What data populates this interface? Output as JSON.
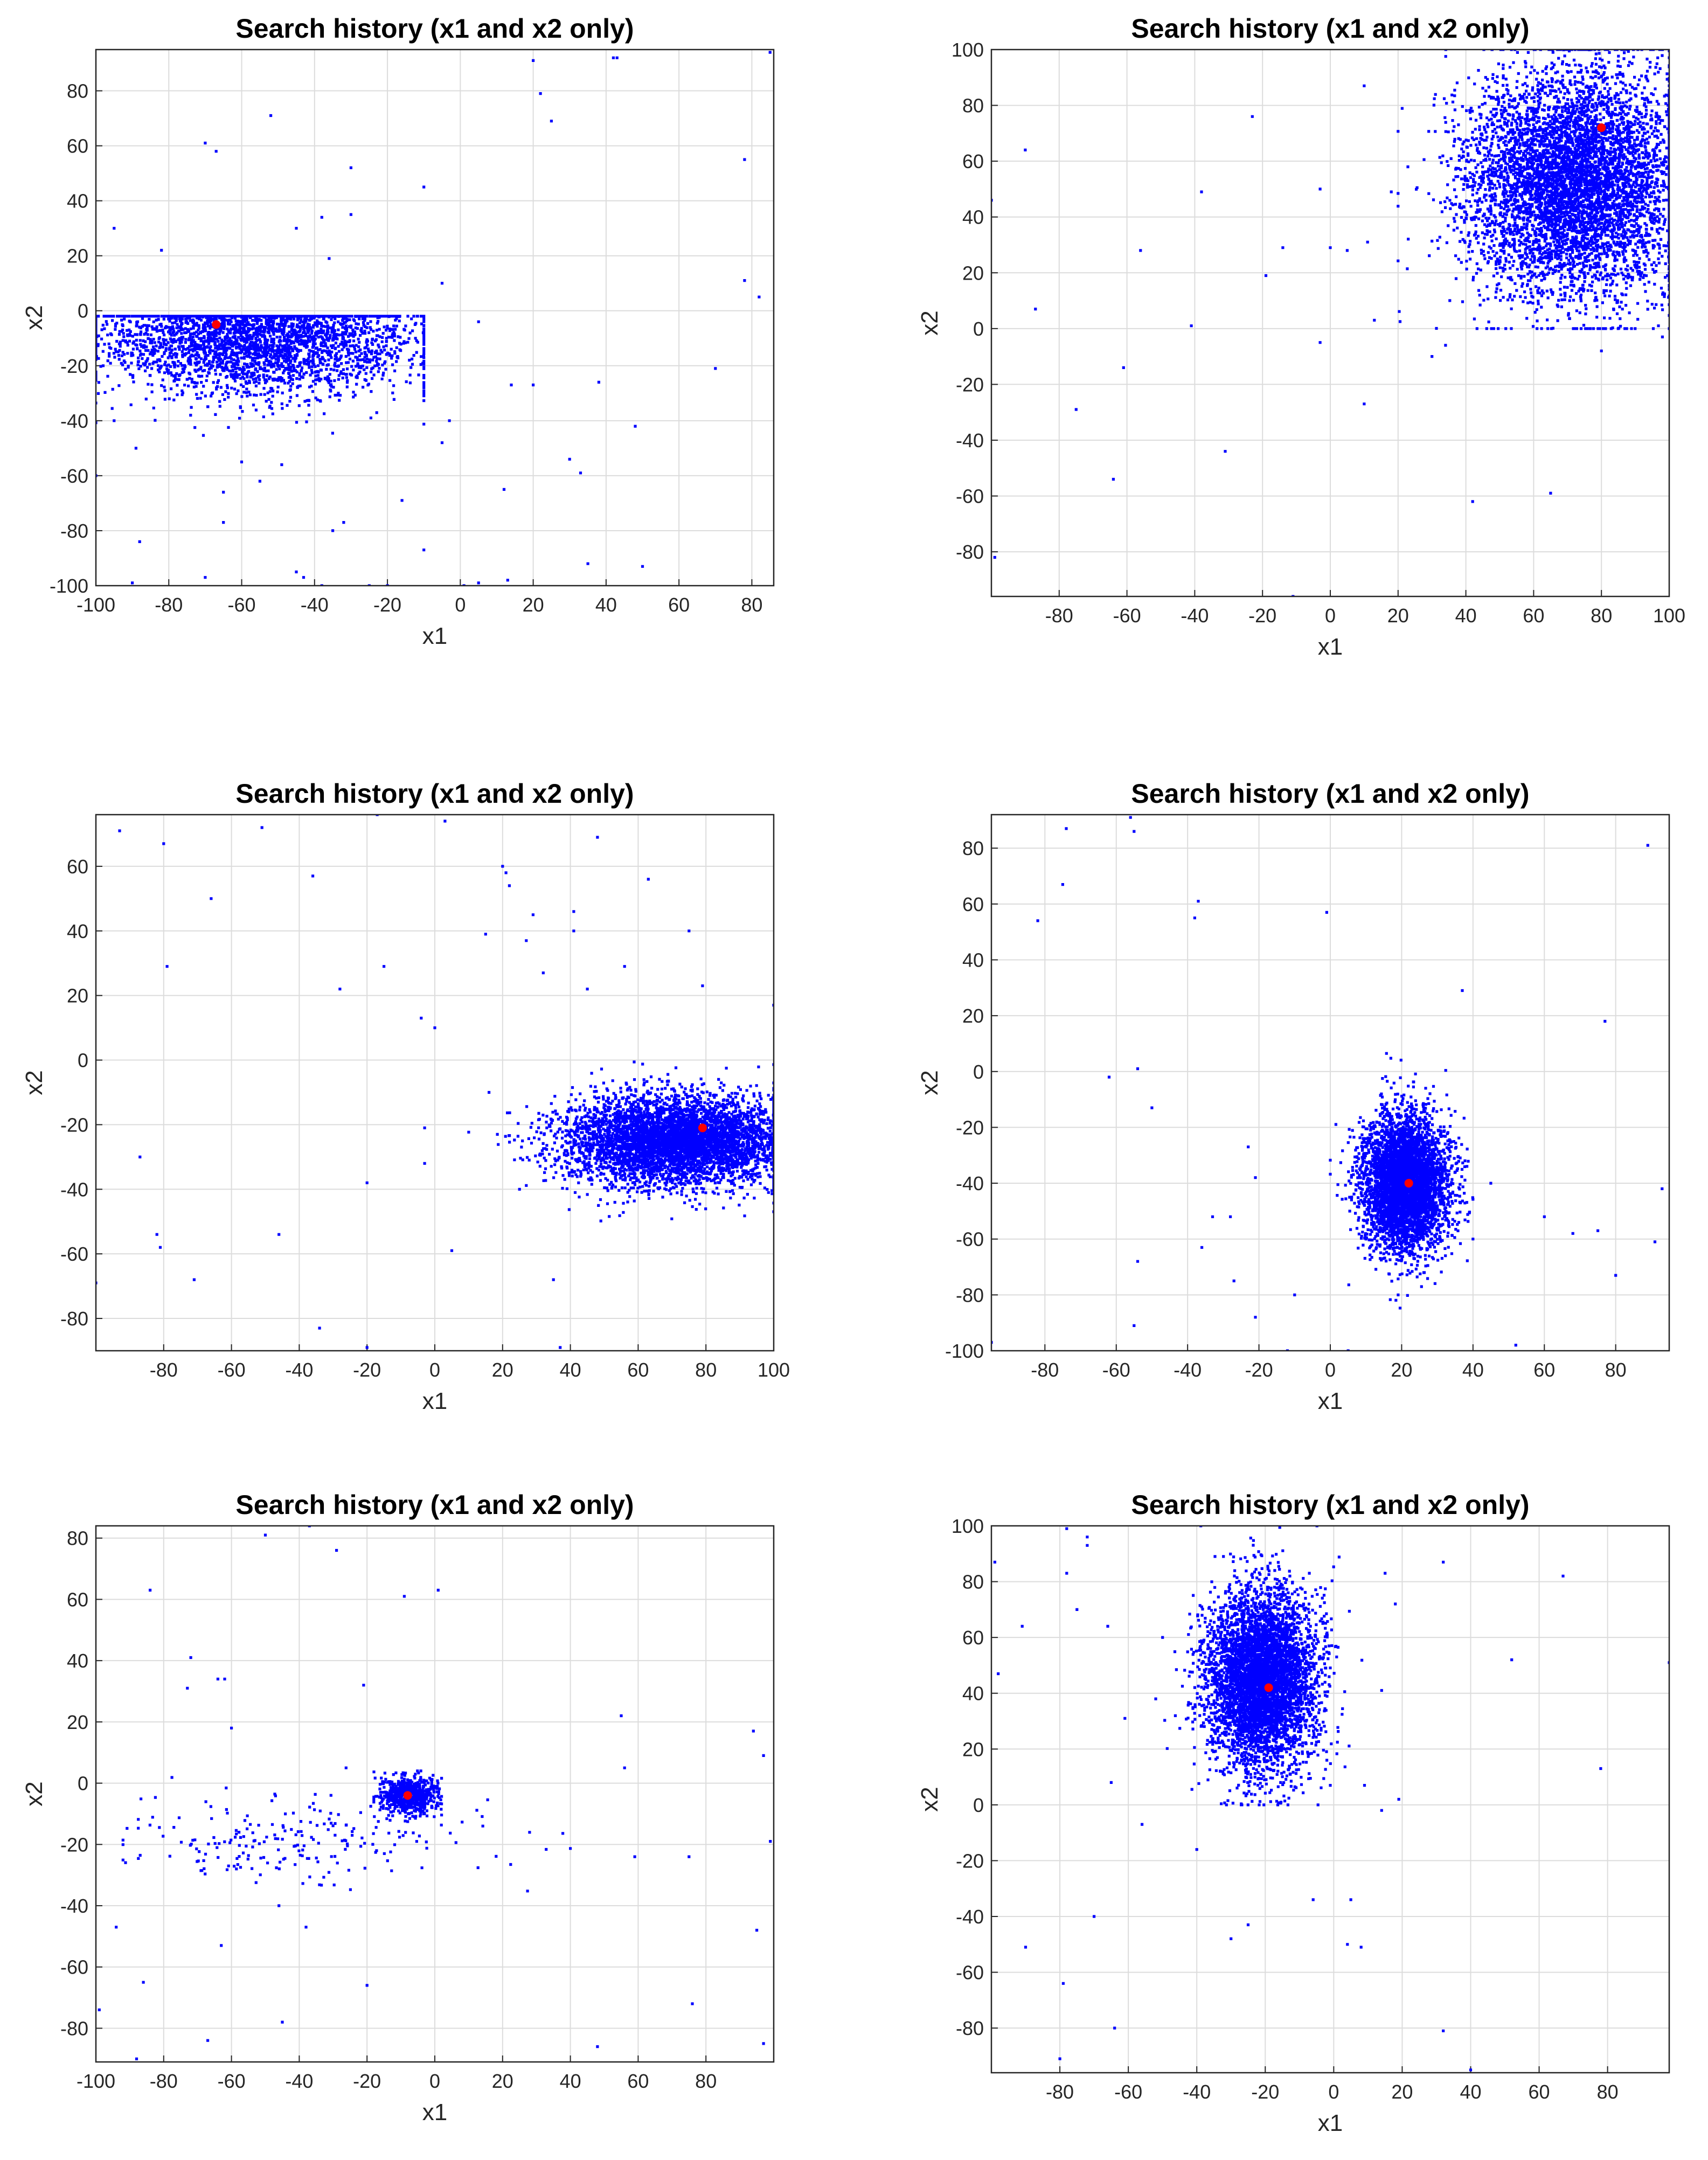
{
  "figure": {
    "colors": {
      "search_points": "#0000ff",
      "best_point": "#ff0000",
      "grid": "#dcdcdc",
      "axes": "#262626"
    }
  },
  "chart_data": [
    {
      "type": "scatter",
      "title": "Search history (x1 and x2 only)",
      "xlabel": "x1",
      "ylabel": "x2",
      "xlim": [
        -100,
        86
      ],
      "ylim": [
        -100,
        95
      ],
      "xticks": [
        -100,
        -80,
        -60,
        -40,
        -20,
        0,
        20,
        40,
        60,
        80
      ],
      "yticks": [
        -100,
        -80,
        -60,
        -40,
        -20,
        0,
        20,
        40,
        60,
        80
      ],
      "grid": true,
      "best_point": [
        -67,
        -5
      ],
      "cluster": {
        "center": [
          -55,
          -10
        ],
        "spread": [
          22,
          10
        ],
        "extent_x": [
          -100,
          -10
        ],
        "extent_y": [
          -50,
          -2
        ],
        "density_points": 3200
      },
      "outliers": [
        [
          -95,
          30
        ],
        [
          -82,
          22
        ],
        [
          -70,
          61
        ],
        [
          -67,
          58
        ],
        [
          -52,
          71
        ],
        [
          -45,
          30
        ],
        [
          -38,
          34
        ],
        [
          -36,
          19
        ],
        [
          -30,
          52
        ],
        [
          -30,
          35
        ],
        [
          -10,
          45
        ],
        [
          -5,
          10
        ],
        [
          5,
          -4
        ],
        [
          20,
          -27
        ],
        [
          14,
          -27
        ],
        [
          20,
          91
        ],
        [
          22,
          79
        ],
        [
          25,
          69
        ],
        [
          42,
          92
        ],
        [
          43,
          92
        ],
        [
          38,
          -26
        ],
        [
          48,
          -42
        ],
        [
          50,
          -93
        ],
        [
          33,
          -59
        ],
        [
          35,
          -92
        ],
        [
          30,
          -54
        ],
        [
          12,
          -65
        ],
        [
          13,
          -98
        ],
        [
          5,
          -99
        ],
        [
          -5,
          -48
        ],
        [
          -3,
          -40
        ],
        [
          -10,
          -87
        ],
        [
          -16,
          -69
        ],
        [
          -32,
          -77
        ],
        [
          -35,
          -80
        ],
        [
          -45,
          -95
        ],
        [
          -43,
          -97
        ],
        [
          -65,
          -66
        ],
        [
          -65,
          -77
        ],
        [
          -70,
          -97
        ],
        [
          -88,
          -84
        ],
        [
          -90,
          -99
        ],
        [
          70,
          -21
        ],
        [
          78,
          11
        ],
        [
          78,
          55
        ],
        [
          82,
          5
        ],
        [
          85,
          94
        ],
        [
          -89,
          -50
        ],
        [
          -95,
          -40
        ],
        [
          -74,
          -38
        ],
        [
          -60,
          -55
        ],
        [
          -55,
          -62
        ],
        [
          -49,
          -56
        ],
        [
          -38,
          -100
        ],
        [
          -25,
          -100
        ],
        [
          -20,
          -100
        ],
        [
          1,
          -100
        ],
        [
          -100,
          -60
        ],
        [
          -98,
          -20
        ]
      ]
    },
    {
      "type": "scatter",
      "title": "Search history (x1 and x2 only)",
      "xlabel": "x1",
      "ylabel": "x2",
      "xlim": [
        -100,
        100
      ],
      "ylim": [
        -96,
        100
      ],
      "xticks": [
        -80,
        -60,
        -40,
        -20,
        0,
        20,
        40,
        60,
        80,
        100
      ],
      "yticks": [
        -80,
        -60,
        -40,
        -20,
        0,
        20,
        40,
        60,
        80,
        100
      ],
      "grid": true,
      "best_point": [
        80,
        72
      ],
      "cluster": {
        "center": [
          72,
          52
        ],
        "spread": [
          16,
          20
        ],
        "extent_x": [
          20,
          100
        ],
        "extent_y": [
          0,
          100
        ],
        "density_points": 6000
      },
      "outliers": [
        [
          -90,
          64
        ],
        [
          -87,
          7
        ],
        [
          -75,
          -29
        ],
        [
          -61,
          -14
        ],
        [
          -64,
          -54
        ],
        [
          -56,
          28
        ],
        [
          -41,
          1
        ],
        [
          -38,
          49
        ],
        [
          -31,
          -44
        ],
        [
          -23,
          76
        ],
        [
          -19,
          19
        ],
        [
          -14,
          29
        ],
        [
          -11,
          -96
        ],
        [
          -3,
          50
        ],
        [
          -3,
          -5
        ],
        [
          0,
          29
        ],
        [
          10,
          87
        ],
        [
          10,
          -27
        ],
        [
          11,
          31
        ],
        [
          5,
          28
        ],
        [
          42,
          -62
        ],
        [
          65,
          -59
        ],
        [
          80,
          -8
        ],
        [
          98,
          -3
        ],
        [
          -99,
          -82
        ],
        [
          -100,
          46
        ],
        [
          13,
          3
        ],
        [
          18,
          49
        ],
        [
          30,
          -10
        ],
        [
          34,
          -6
        ]
      ]
    },
    {
      "type": "scatter",
      "title": "Search history (x1 and x2 only)",
      "xlabel": "x1",
      "ylabel": "x2",
      "xlim": [
        -100,
        100
      ],
      "ylim": [
        -90,
        76
      ],
      "xticks": [
        -80,
        -60,
        -40,
        -20,
        0,
        20,
        40,
        60,
        80,
        100
      ],
      "yticks": [
        -80,
        -60,
        -40,
        -20,
        0,
        20,
        40,
        60
      ],
      "grid": true,
      "best_point": [
        79,
        -21
      ],
      "cluster": {
        "center": [
          72,
          -25
        ],
        "spread": [
          17,
          7
        ],
        "extent_x": [
          10,
          100
        ],
        "extent_y": [
          -60,
          0
        ],
        "density_points": 5000
      },
      "outliers": [
        [
          -93,
          71
        ],
        [
          -80,
          67
        ],
        [
          -79,
          29
        ],
        [
          -87,
          -30
        ],
        [
          -82,
          -54
        ],
        [
          -81,
          -58
        ],
        [
          -71,
          -68
        ],
        [
          -66,
          50
        ],
        [
          -51,
          72
        ],
        [
          -46,
          -54
        ],
        [
          -36,
          57
        ],
        [
          -34,
          -83
        ],
        [
          -28,
          22
        ],
        [
          -20,
          -89
        ],
        [
          -17,
          76
        ],
        [
          -15,
          29
        ],
        [
          -4,
          13
        ],
        [
          0,
          10
        ],
        [
          3,
          74
        ],
        [
          5,
          -59
        ],
        [
          -3,
          -32
        ],
        [
          -3,
          -21
        ],
        [
          -20,
          -38
        ],
        [
          15,
          39
        ],
        [
          20,
          60
        ],
        [
          21,
          58
        ],
        [
          22,
          54
        ],
        [
          27,
          37
        ],
        [
          29,
          45
        ],
        [
          32,
          27
        ],
        [
          35,
          -68
        ],
        [
          37,
          -89
        ],
        [
          41,
          46
        ],
        [
          41,
          40
        ],
        [
          45,
          22
        ],
        [
          48,
          69
        ],
        [
          56,
          29
        ],
        [
          63,
          56
        ],
        [
          75,
          40
        ],
        [
          79,
          23
        ],
        [
          -100,
          -69
        ],
        [
          100,
          17
        ],
        [
          16,
          -10
        ],
        [
          25,
          -40
        ]
      ]
    },
    {
      "type": "scatter",
      "title": "Search history (x1 and x2 only)",
      "xlabel": "x1",
      "ylabel": "x2",
      "xlim": [
        -95,
        95
      ],
      "ylim": [
        -100,
        92
      ],
      "xticks": [
        -80,
        -60,
        -40,
        -20,
        0,
        20,
        40,
        60,
        80
      ],
      "yticks": [
        -100,
        -80,
        -60,
        -40,
        -20,
        0,
        20,
        40,
        60,
        80
      ],
      "grid": true,
      "best_point": [
        22,
        -40
      ],
      "cluster": {
        "center": [
          21,
          -40
        ],
        "spread": [
          6,
          12
        ],
        "extent_x": [
          0,
          40
        ],
        "extent_y": [
          -90,
          20
        ],
        "density_points": 4500
      },
      "outliers": [
        [
          -82,
          54
        ],
        [
          -74,
          87
        ],
        [
          -75,
          67
        ],
        [
          -62,
          -2
        ],
        [
          -56,
          91
        ],
        [
          -55,
          86
        ],
        [
          -54,
          1
        ],
        [
          -50,
          -13
        ],
        [
          -38,
          55
        ],
        [
          -37,
          61
        ],
        [
          -36,
          -63
        ],
        [
          -33,
          -52
        ],
        [
          -28,
          -52
        ],
        [
          -27,
          -75
        ],
        [
          -23,
          -27
        ],
        [
          -21,
          -38
        ],
        [
          -21,
          -88
        ],
        [
          -1,
          57
        ],
        [
          -54,
          -68
        ],
        [
          -55,
          -91
        ],
        [
          37,
          29
        ],
        [
          60,
          -52
        ],
        [
          68,
          -58
        ],
        [
          75,
          -57
        ],
        [
          77,
          18
        ],
        [
          80,
          -73
        ],
        [
          89,
          81
        ],
        [
          91,
          -61
        ],
        [
          93,
          -42
        ],
        [
          -95,
          -97
        ],
        [
          -12,
          -100
        ],
        [
          5,
          -100
        ],
        [
          52,
          -98
        ],
        [
          10,
          -60
        ],
        [
          -10,
          -80
        ],
        [
          45,
          -40
        ],
        [
          40,
          -60
        ]
      ]
    },
    {
      "type": "scatter",
      "title": "Search history (x1 and x2 only)",
      "xlabel": "x1",
      "ylabel": "x2",
      "xlim": [
        -100,
        100
      ],
      "ylim": [
        -91,
        84
      ],
      "xticks": [
        -100,
        -80,
        -60,
        -40,
        -20,
        0,
        20,
        40,
        60,
        80
      ],
      "yticks": [
        -80,
        -60,
        -40,
        -20,
        0,
        20,
        40,
        60,
        80
      ],
      "grid": true,
      "best_point": [
        -8,
        -4
      ],
      "cluster": {
        "center": [
          -8,
          -4
        ],
        "spread": [
          4,
          3
        ],
        "extent_x": [
          -18,
          2
        ],
        "extent_y": [
          -12,
          4
        ],
        "density_points": 700
      },
      "trail": {
        "center": [
          -40,
          -18
        ],
        "spread": [
          28,
          8
        ],
        "extent_x": [
          -92,
          40
        ],
        "extent_y": [
          -38,
          5
        ],
        "density_points": 220
      },
      "outliers": [
        [
          -84,
          63
        ],
        [
          -72,
          41
        ],
        [
          -73,
          31
        ],
        [
          -64,
          34
        ],
        [
          -62,
          34
        ],
        [
          -60,
          18
        ],
        [
          -50,
          81
        ],
        [
          -37,
          84
        ],
        [
          -29,
          76
        ],
        [
          -21,
          32
        ],
        [
          -9,
          61
        ],
        [
          1,
          63
        ],
        [
          -99,
          -74
        ],
        [
          -94,
          -47
        ],
        [
          -88,
          -90
        ],
        [
          -86,
          -65
        ],
        [
          -67,
          -84
        ],
        [
          -63,
          -53
        ],
        [
          -46,
          -40
        ],
        [
          -45,
          -78
        ],
        [
          -38,
          -47
        ],
        [
          -20,
          -66
        ],
        [
          48,
          -86
        ],
        [
          76,
          -72
        ],
        [
          95,
          -48
        ],
        [
          97,
          -85
        ],
        [
          99,
          -19
        ],
        [
          94,
          17
        ],
        [
          97,
          9
        ],
        [
          55,
          22
        ],
        [
          56,
          5
        ],
        [
          59,
          -24
        ],
        [
          75,
          -24
        ]
      ]
    },
    {
      "type": "scatter",
      "title": "Search history (x1 and x2 only)",
      "xlabel": "x1",
      "ylabel": "x2",
      "xlim": [
        -100,
        98
      ],
      "ylim": [
        -96,
        100
      ],
      "xticks": [
        -80,
        -60,
        -40,
        -20,
        0,
        20,
        40,
        60,
        80
      ],
      "yticks": [
        -80,
        -60,
        -40,
        -20,
        0,
        20,
        40,
        60,
        80,
        100
      ],
      "grid": true,
      "best_point": [
        -19,
        42
      ],
      "cluster": {
        "center": [
          -21,
          45
        ],
        "spread": [
          8,
          16
        ],
        "extent_x": [
          -55,
          10
        ],
        "extent_y": [
          0,
          100
        ],
        "density_points": 5000
      },
      "outliers": [
        [
          -99,
          87
        ],
        [
          -98,
          47
        ],
        [
          -91,
          64
        ],
        [
          -90,
          -51
        ],
        [
          -78,
          83
        ],
        [
          -75,
          70
        ],
        [
          -72,
          93
        ],
        [
          -70,
          -40
        ],
        [
          -66,
          64
        ],
        [
          -65,
          8
        ],
        [
          -64,
          -80
        ],
        [
          -61,
          31
        ],
        [
          -56,
          -7
        ],
        [
          -52,
          38
        ],
        [
          -40,
          -16
        ],
        [
          -30,
          -48
        ],
        [
          -25,
          -43
        ],
        [
          -6,
          -34
        ],
        [
          -2,
          16
        ],
        [
          4,
          -50
        ],
        [
          8,
          -51
        ],
        [
          9,
          7
        ],
        [
          14,
          41
        ],
        [
          15,
          83
        ],
        [
          18,
          72
        ],
        [
          19,
          2
        ],
        [
          32,
          87
        ],
        [
          32,
          -81
        ],
        [
          40,
          -95
        ],
        [
          52,
          52
        ],
        [
          67,
          82
        ],
        [
          78,
          13
        ],
        [
          98,
          51
        ],
        [
          -80,
          -91
        ],
        [
          -79,
          -64
        ],
        [
          -78,
          99
        ],
        [
          -72,
          96
        ],
        [
          14,
          -2
        ],
        [
          -50,
          60
        ],
        [
          5,
          -34
        ]
      ]
    }
  ]
}
